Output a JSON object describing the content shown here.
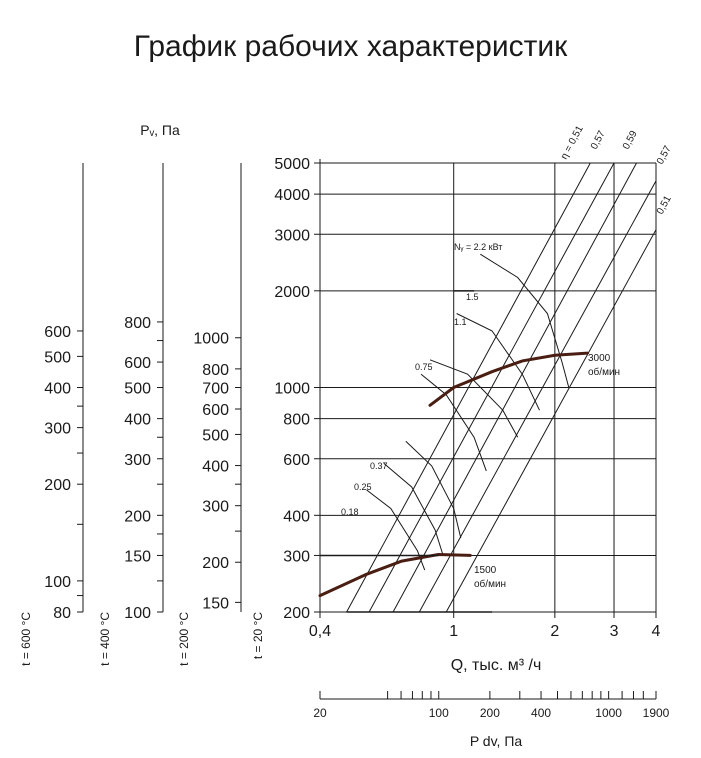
{
  "title": "График рабочих характеристик",
  "chart_data": {
    "type": "line",
    "xscale": "log",
    "yscale": "log",
    "xlabel": "Q, тыс. м³ /ч",
    "ylabel": "",
    "x_ticks": [
      "0,4",
      "1",
      "2",
      "3",
      "4"
    ],
    "y_ticks": [
      {
        "v": 200,
        "label": "200"
      },
      {
        "v": 300,
        "label": "300"
      },
      {
        "v": 400,
        "label": "400"
      },
      {
        "v": 600,
        "label": "600"
      },
      {
        "v": 800,
        "label": "800"
      },
      {
        "v": 1000,
        "label": "1000"
      },
      {
        "v": 2000,
        "label": "2000"
      },
      {
        "v": 3000,
        "label": "3000"
      },
      {
        "v": 4000,
        "label": "4000"
      },
      {
        "v": 5000,
        "label": "5000"
      }
    ],
    "xlim": [
      0.4,
      4
    ],
    "ylim": [
      200,
      5000
    ],
    "pv_label": "Pᵥ, Па",
    "pdv_label": "P dv, Па",
    "pdv_ticks": [
      "20",
      "100",
      "200",
      "400",
      "1000",
      "1900"
    ],
    "pdv_minor": [
      50,
      60,
      70,
      80,
      90,
      300,
      500,
      600,
      700,
      800,
      900,
      1200,
      1400,
      1600
    ],
    "temp_scales": [
      {
        "label": "t = 600 °C",
        "factor": 0.4,
        "ticks": [
          80,
          100,
          200,
          300,
          400,
          500,
          600
        ],
        "minor": [
          90,
          150,
          250,
          350
        ]
      },
      {
        "label": "t = 400 °C",
        "factor": 0.5,
        "ticks": [
          100,
          150,
          200,
          300,
          400,
          500,
          600,
          800
        ],
        "minor": [
          125,
          175,
          250,
          350,
          700
        ]
      },
      {
        "label": "t = 200 °C",
        "factor": 0.7,
        "ticks": [
          150,
          200,
          300,
          400,
          500,
          600,
          700,
          800,
          1000
        ],
        "minor": [
          250,
          350
        ]
      },
      {
        "label": "t = 20 °C",
        "factor": 1,
        "ticks": [],
        "minor": []
      }
    ],
    "series": [
      {
        "name": "3000 об/мин",
        "label_lines": [
          "3000",
          "об/мин"
        ],
        "points": [
          [
            0.85,
            880
          ],
          [
            1,
            1000
          ],
          [
            1.3,
            1120
          ],
          [
            1.6,
            1210
          ],
          [
            2,
            1260
          ],
          [
            2.5,
            1280
          ]
        ]
      },
      {
        "name": "1500 об/мин",
        "label_lines": [
          "1500",
          "об/мин"
        ],
        "points": [
          [
            0.4,
            225
          ],
          [
            0.55,
            262
          ],
          [
            0.7,
            288
          ],
          [
            0.9,
            302
          ],
          [
            1.12,
            300
          ]
        ]
      }
    ],
    "efficiency_labels": [
      "η = 0,51",
      "0,57",
      "0,59",
      "0,57",
      "0,51"
    ],
    "power_labels": [
      "Nᵧ = 2.2 кВт",
      "1.5",
      "1.1",
      "0.75",
      "0.37",
      "0.25",
      "0.18"
    ]
  }
}
